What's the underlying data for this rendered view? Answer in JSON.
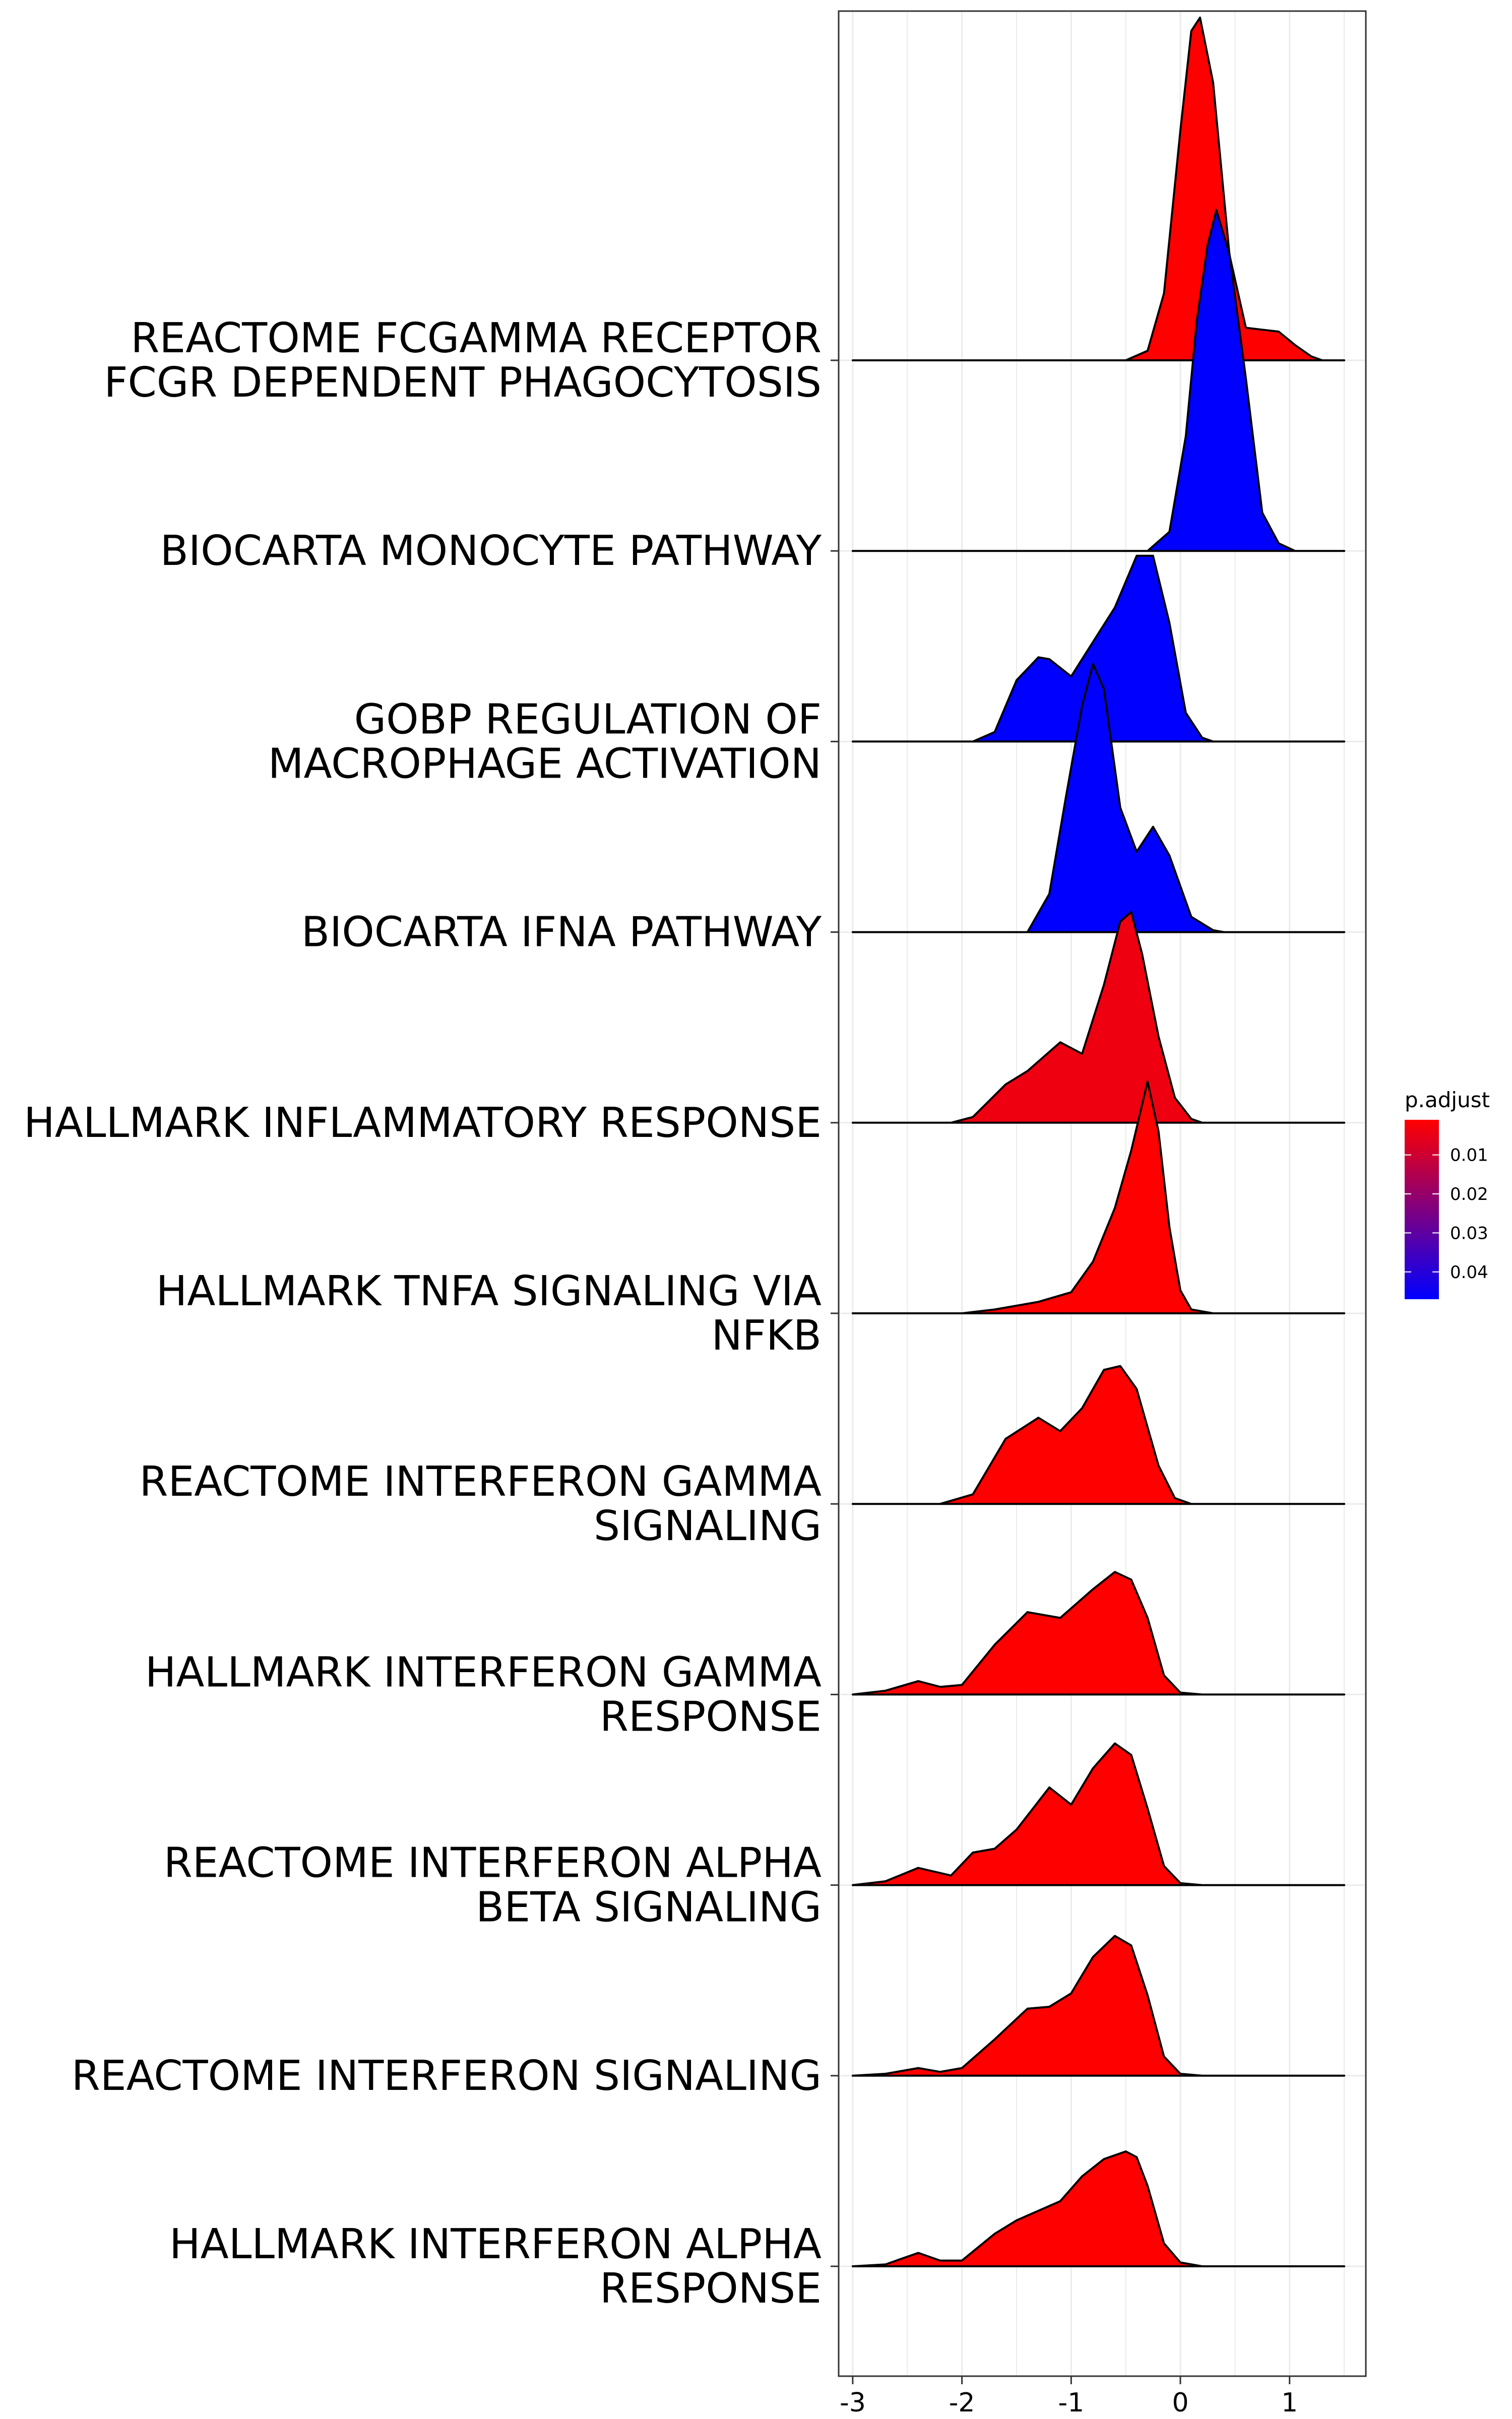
{
  "chart_data": {
    "type": "ridgeline",
    "title": "",
    "xlabel": "",
    "ylabel": "",
    "xlim": [
      -3.2,
      1.65
    ],
    "xticks": [
      -3,
      -2,
      -1,
      0,
      1
    ],
    "xtick_labels": [
      "-3",
      "-2",
      "-1",
      "0",
      "1"
    ],
    "grid": true,
    "legend": {
      "title": "p.adjust",
      "position": "right",
      "ticks": [
        0.01,
        0.02,
        0.03,
        0.04
      ],
      "tick_labels": [
        "0.01",
        "0.02",
        "0.03",
        "0.04"
      ],
      "color_low": "#ff0000",
      "color_high": "#0000ff",
      "range": [
        0.001,
        0.047
      ]
    },
    "baseline_range": [
      -3.0,
      1.5
    ],
    "series": [
      {
        "label": "HALLMARK INTERFERON ALPHA\nRESPONSE",
        "p_adjust": 0.001,
        "density": [
          [
            -3.0,
            0
          ],
          [
            -2.7,
            0.01
          ],
          [
            -2.4,
            0.07
          ],
          [
            -2.2,
            0.03
          ],
          [
            -2.0,
            0.03
          ],
          [
            -1.7,
            0.17
          ],
          [
            -1.5,
            0.24
          ],
          [
            -1.1,
            0.34
          ],
          [
            -0.9,
            0.47
          ],
          [
            -0.7,
            0.56
          ],
          [
            -0.5,
            0.6
          ],
          [
            -0.4,
            0.57
          ],
          [
            -0.3,
            0.42
          ],
          [
            -0.15,
            0.12
          ],
          [
            0.0,
            0.02
          ],
          [
            0.2,
            0
          ],
          [
            1.5,
            0
          ]
        ]
      },
      {
        "label": "REACTOME INTERFERON SIGNALING",
        "p_adjust": 0.001,
        "density": [
          [
            -3.0,
            0
          ],
          [
            -2.7,
            0.01
          ],
          [
            -2.4,
            0.04
          ],
          [
            -2.2,
            0.02
          ],
          [
            -2.0,
            0.04
          ],
          [
            -1.7,
            0.19
          ],
          [
            -1.4,
            0.35
          ],
          [
            -1.2,
            0.36
          ],
          [
            -1.0,
            0.43
          ],
          [
            -0.8,
            0.62
          ],
          [
            -0.6,
            0.73
          ],
          [
            -0.45,
            0.68
          ],
          [
            -0.3,
            0.42
          ],
          [
            -0.15,
            0.1
          ],
          [
            0.0,
            0.01
          ],
          [
            0.2,
            0
          ],
          [
            1.5,
            0
          ]
        ]
      },
      {
        "label": "REACTOME INTERFERON ALPHA\nBETA SIGNALING",
        "p_adjust": 0.001,
        "density": [
          [
            -3.0,
            0
          ],
          [
            -2.7,
            0.02
          ],
          [
            -2.4,
            0.09
          ],
          [
            -2.1,
            0.05
          ],
          [
            -1.9,
            0.17
          ],
          [
            -1.7,
            0.19
          ],
          [
            -1.5,
            0.29
          ],
          [
            -1.2,
            0.51
          ],
          [
            -1.0,
            0.42
          ],
          [
            -0.8,
            0.61
          ],
          [
            -0.6,
            0.74
          ],
          [
            -0.45,
            0.68
          ],
          [
            -0.3,
            0.4
          ],
          [
            -0.15,
            0.1
          ],
          [
            0.0,
            0.01
          ],
          [
            0.2,
            0
          ],
          [
            1.5,
            0
          ]
        ]
      },
      {
        "label": "HALLMARK INTERFERON GAMMA\nRESPONSE",
        "p_adjust": 0.001,
        "density": [
          [
            -3.0,
            0
          ],
          [
            -2.7,
            0.02
          ],
          [
            -2.4,
            0.07
          ],
          [
            -2.2,
            0.04
          ],
          [
            -2.0,
            0.05
          ],
          [
            -1.7,
            0.26
          ],
          [
            -1.4,
            0.43
          ],
          [
            -1.1,
            0.4
          ],
          [
            -0.8,
            0.55
          ],
          [
            -0.6,
            0.64
          ],
          [
            -0.45,
            0.6
          ],
          [
            -0.3,
            0.4
          ],
          [
            -0.15,
            0.1
          ],
          [
            0.0,
            0.01
          ],
          [
            0.2,
            0
          ],
          [
            1.5,
            0
          ]
        ]
      },
      {
        "label": "REACTOME INTERFERON GAMMA\nSIGNALING",
        "p_adjust": 0.001,
        "density": [
          [
            -3.0,
            0
          ],
          [
            -2.2,
            0
          ],
          [
            -1.9,
            0.05
          ],
          [
            -1.6,
            0.34
          ],
          [
            -1.3,
            0.45
          ],
          [
            -1.1,
            0.38
          ],
          [
            -0.9,
            0.5
          ],
          [
            -0.7,
            0.7
          ],
          [
            -0.55,
            0.72
          ],
          [
            -0.4,
            0.6
          ],
          [
            -0.2,
            0.2
          ],
          [
            -0.05,
            0.03
          ],
          [
            0.1,
            0
          ],
          [
            1.5,
            0
          ]
        ]
      },
      {
        "label": "HALLMARK TNFA SIGNALING VIA\nNFKB",
        "p_adjust": 0.001,
        "density": [
          [
            -3.0,
            0
          ],
          [
            -2.0,
            0
          ],
          [
            -1.7,
            0.02
          ],
          [
            -1.3,
            0.06
          ],
          [
            -1.0,
            0.11
          ],
          [
            -0.8,
            0.27
          ],
          [
            -0.6,
            0.55
          ],
          [
            -0.45,
            0.85
          ],
          [
            -0.3,
            1.21
          ],
          [
            -0.2,
            0.95
          ],
          [
            -0.1,
            0.45
          ],
          [
            0.0,
            0.12
          ],
          [
            0.1,
            0.02
          ],
          [
            0.3,
            0
          ],
          [
            1.5,
            0
          ]
        ]
      },
      {
        "label": "HALLMARK INFLAMMATORY RESPONSE",
        "p_adjust": 0.004,
        "density": [
          [
            -3.0,
            0
          ],
          [
            -2.1,
            0
          ],
          [
            -1.9,
            0.03
          ],
          [
            -1.6,
            0.2
          ],
          [
            -1.4,
            0.27
          ],
          [
            -1.1,
            0.42
          ],
          [
            -0.9,
            0.36
          ],
          [
            -0.7,
            0.72
          ],
          [
            -0.55,
            1.05
          ],
          [
            -0.45,
            1.1
          ],
          [
            -0.35,
            0.88
          ],
          [
            -0.2,
            0.45
          ],
          [
            -0.05,
            0.13
          ],
          [
            0.1,
            0.02
          ],
          [
            0.2,
            0
          ],
          [
            1.5,
            0
          ]
        ]
      },
      {
        "label": "BIOCARTA IFNA PATHWAY",
        "p_adjust": 0.047,
        "density": [
          [
            -3.0,
            0
          ],
          [
            -1.4,
            0
          ],
          [
            -1.2,
            0.2
          ],
          [
            -1.05,
            0.7
          ],
          [
            -0.9,
            1.18
          ],
          [
            -0.8,
            1.4
          ],
          [
            -0.7,
            1.27
          ],
          [
            -0.55,
            0.65
          ],
          [
            -0.4,
            0.42
          ],
          [
            -0.25,
            0.55
          ],
          [
            -0.1,
            0.4
          ],
          [
            0.1,
            0.08
          ],
          [
            0.3,
            0.01
          ],
          [
            0.4,
            0
          ],
          [
            1.5,
            0
          ]
        ]
      },
      {
        "label": "GOBP REGULATION OF\nMACROPHAGE ACTIVATION",
        "p_adjust": 0.047,
        "density": [
          [
            -3.0,
            0
          ],
          [
            -1.9,
            0
          ],
          [
            -1.7,
            0.05
          ],
          [
            -1.5,
            0.32
          ],
          [
            -1.3,
            0.44
          ],
          [
            -1.2,
            0.43
          ],
          [
            -1.0,
            0.34
          ],
          [
            -0.8,
            0.52
          ],
          [
            -0.6,
            0.7
          ],
          [
            -0.4,
            0.97
          ],
          [
            -0.25,
            0.97
          ],
          [
            -0.1,
            0.62
          ],
          [
            0.05,
            0.15
          ],
          [
            0.2,
            0.02
          ],
          [
            0.3,
            0
          ],
          [
            1.5,
            0
          ]
        ]
      },
      {
        "label": "BIOCARTA MONOCYTE PATHWAY",
        "p_adjust": 0.047,
        "density": [
          [
            -3.0,
            0
          ],
          [
            -0.3,
            0
          ],
          [
            -0.1,
            0.1
          ],
          [
            0.05,
            0.6
          ],
          [
            0.15,
            1.2
          ],
          [
            0.25,
            1.6
          ],
          [
            0.33,
            1.78
          ],
          [
            0.45,
            1.55
          ],
          [
            0.6,
            0.9
          ],
          [
            0.75,
            0.2
          ],
          [
            0.9,
            0.04
          ],
          [
            1.05,
            0
          ],
          [
            1.5,
            0
          ]
        ]
      },
      {
        "label": "REACTOME FCGAMMA RECEPTOR\nFCGR DEPENDENT PHAGOCYTOSIS",
        "p_adjust": 0.001,
        "density": [
          [
            -3.0,
            0
          ],
          [
            -0.5,
            0
          ],
          [
            -0.3,
            0.05
          ],
          [
            -0.15,
            0.35
          ],
          [
            0.0,
            1.2
          ],
          [
            0.1,
            1.72
          ],
          [
            0.18,
            1.79
          ],
          [
            0.3,
            1.45
          ],
          [
            0.45,
            0.55
          ],
          [
            0.6,
            0.17
          ],
          [
            0.75,
            0.16
          ],
          [
            0.9,
            0.15
          ],
          [
            1.05,
            0.08
          ],
          [
            1.2,
            0.02
          ],
          [
            1.3,
            0
          ],
          [
            1.5,
            0
          ]
        ]
      }
    ]
  }
}
